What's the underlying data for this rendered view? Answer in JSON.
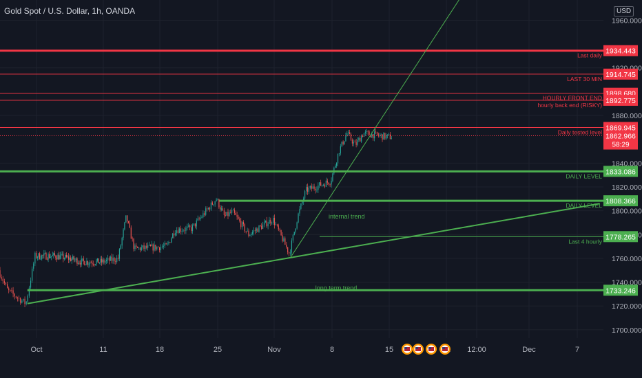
{
  "header": {
    "title": "Gold Spot / U.S. Dollar, 1h, OANDA",
    "currency": "USD"
  },
  "chart_data": {
    "type": "candlestick",
    "title": "Gold Spot / U.S. Dollar, 1h, OANDA",
    "ylim": [
      1693,
      1977
    ],
    "y_ticks": [
      1700,
      1720,
      1740,
      1760,
      1780,
      1800,
      1820,
      1840,
      1880,
      1920,
      1960
    ],
    "x_ticks": [
      "Oct",
      "11",
      "18",
      "25",
      "Nov",
      "8",
      "15",
      "22",
      "12:00",
      "Dec",
      "7"
    ],
    "price_path": [
      {
        "date": "Sep 27",
        "price": 1750
      },
      {
        "date": "Sep 28",
        "price": 1733
      },
      {
        "date": "Sep 30",
        "price": 1722
      },
      {
        "date": "Oct 1",
        "price": 1762
      },
      {
        "date": "Oct 4",
        "price": 1762
      },
      {
        "date": "Oct 6",
        "price": 1760
      },
      {
        "date": "Oct 8",
        "price": 1757
      },
      {
        "date": "Oct 11",
        "price": 1757
      },
      {
        "date": "Oct 13",
        "price": 1760
      },
      {
        "date": "Oct 14",
        "price": 1795
      },
      {
        "date": "Oct 15",
        "price": 1768
      },
      {
        "date": "Oct 19",
        "price": 1770
      },
      {
        "date": "Oct 20",
        "price": 1784
      },
      {
        "date": "Oct 22",
        "price": 1785
      },
      {
        "date": "Oct 25",
        "price": 1810
      },
      {
        "date": "Oct 26",
        "price": 1795
      },
      {
        "date": "Oct 27",
        "price": 1799
      },
      {
        "date": "Oct 29",
        "price": 1780
      },
      {
        "date": "Nov 1",
        "price": 1793
      },
      {
        "date": "Nov 3",
        "price": 1764
      },
      {
        "date": "Nov 4",
        "price": 1795
      },
      {
        "date": "Nov 5",
        "price": 1817
      },
      {
        "date": "Nov 8",
        "price": 1825
      },
      {
        "date": "Nov 9",
        "price": 1850
      },
      {
        "date": "Nov 10",
        "price": 1865
      },
      {
        "date": "Nov 11",
        "price": 1855
      },
      {
        "date": "Nov 12",
        "price": 1865
      },
      {
        "date": "Nov 15",
        "price": 1862
      }
    ],
    "horizontal_levels": [
      {
        "price": "1934.443",
        "label": "Last daily",
        "color": "#f23645",
        "width": 3
      },
      {
        "price": "1914.745",
        "label": "LAST 30 MIN",
        "color": "#f23645",
        "width": 1
      },
      {
        "price": "1898.680",
        "label": "HOURLY FRONT END",
        "color": "#f23645",
        "width": 1
      },
      {
        "price": "1892.775",
        "label": "hourly back end (RISKY)",
        "color": "#f23645",
        "width": 1
      },
      {
        "price": "1869.945",
        "label": "Daily tested level",
        "color": "#f23645",
        "width": 1
      },
      {
        "price": "1833.086",
        "label": "DAILY LEVEL",
        "color": "#4caf50",
        "width": 3
      },
      {
        "price": "1808.366",
        "label": "DAILY LEVEL",
        "color": "#4caf50",
        "width": 3
      },
      {
        "price": "1778.265",
        "label": "Last 4 hourly",
        "color": "#4caf50",
        "width": 1
      },
      {
        "price": "1733.246",
        "label": "",
        "color": "#4caf50",
        "width": 3
      }
    ],
    "current_price": {
      "price": "1862.966",
      "countdown": "58:29"
    },
    "trend_lines": [
      {
        "label": "long term trend",
        "from": {
          "date": "Sep 30",
          "price": 1722
        },
        "to": {
          "date": "Dec 10",
          "price": 1806
        }
      },
      {
        "label": "internal trend",
        "from": {
          "date": "Nov 3",
          "price": 1761
        },
        "to": {
          "date": "Nov 25",
          "price": 1990
        }
      }
    ],
    "colors": {
      "up": "#26a69a",
      "down": "#ef5350",
      "background": "#131722",
      "grid": "#1e222d"
    }
  }
}
